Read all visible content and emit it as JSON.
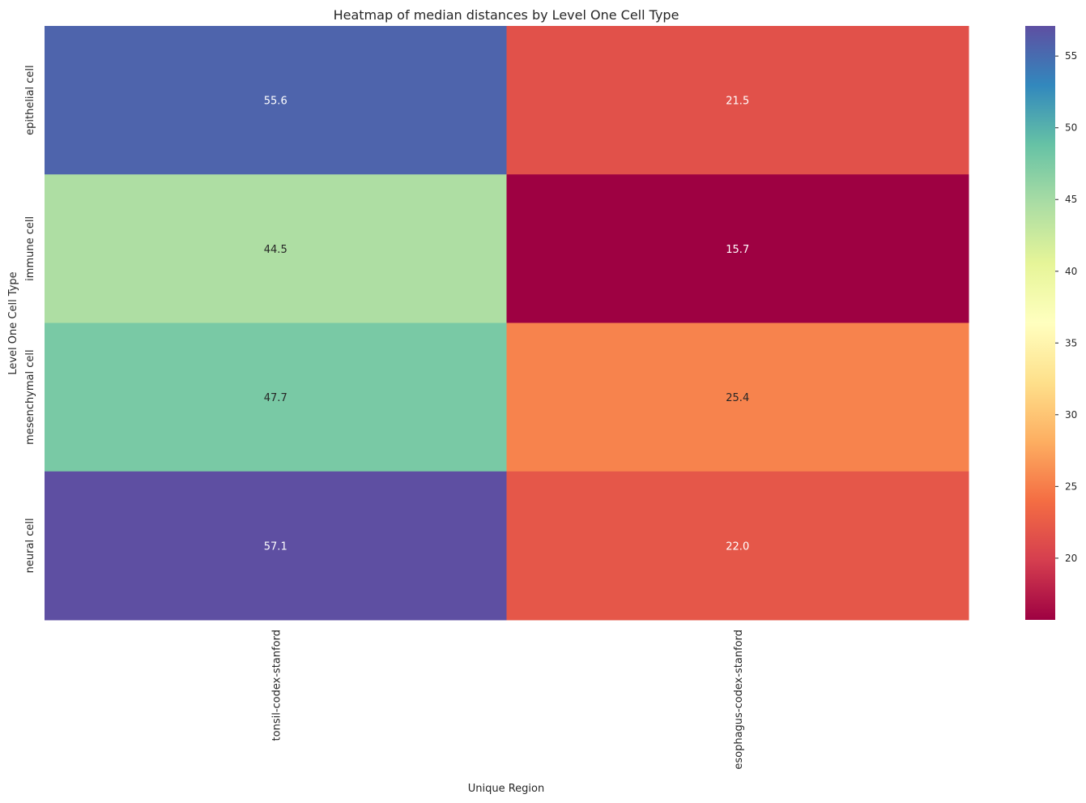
{
  "chart_data": {
    "type": "heatmap",
    "title": "Heatmap of median distances by Level One Cell Type",
    "xlabel": "Unique Region",
    "ylabel": "Level One Cell Type",
    "x_categories": [
      "tonsil-codex-stanford",
      "esophagus-codex-stanford"
    ],
    "y_categories": [
      "epithelial cell",
      "immune cell",
      "mesenchymal cell",
      "neural cell"
    ],
    "values": [
      [
        55.6,
        21.5
      ],
      [
        44.5,
        15.7
      ],
      [
        47.7,
        25.4
      ],
      [
        57.1,
        22.0
      ]
    ],
    "value_format": "0.0",
    "colormap": "Spectral",
    "colorbar": {
      "range": [
        15.7,
        57.1
      ],
      "ticks": [
        20,
        25,
        30,
        35,
        40,
        45,
        50,
        55
      ]
    },
    "colors": {
      "text_dark": "#262626",
      "text_light": "#ffffff"
    }
  }
}
